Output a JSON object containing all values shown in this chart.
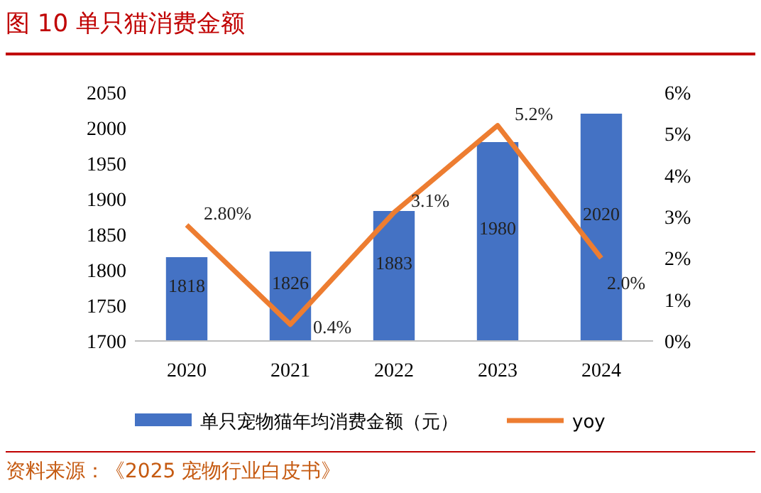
{
  "chart_data": {
    "type": "bar",
    "title": "图 10 单只猫消费金额",
    "categories": [
      "2020",
      "2021",
      "2022",
      "2023",
      "2024"
    ],
    "series": [
      {
        "name": "单只宠物猫年均消费金额（元）",
        "color": "#4472c4",
        "values": [
          1818,
          1826,
          1883,
          1980,
          2020
        ],
        "value_labels": [
          "1818",
          "1826",
          "1883",
          "1980",
          "2020"
        ]
      },
      {
        "name": "yoy",
        "type": "line",
        "axis": "y2",
        "color": "#ed7d31",
        "values": [
          2.8,
          0.4,
          3.1,
          5.2,
          2.0
        ],
        "value_labels": [
          "2.80%",
          "0.4%",
          "3.1%",
          "5.2%",
          "2.0%"
        ]
      }
    ],
    "ylim": [
      1700,
      2050
    ],
    "yticks": [
      1700,
      1750,
      1800,
      1850,
      1900,
      1950,
      2000,
      2050
    ],
    "y2lim": [
      0,
      6
    ],
    "y2ticks": [
      {
        "value": 0,
        "label": "0%"
      },
      {
        "value": 1,
        "label": "1%"
      },
      {
        "value": 2,
        "label": "2%"
      },
      {
        "value": 3,
        "label": "3%"
      },
      {
        "value": 4,
        "label": "4%"
      },
      {
        "value": 5,
        "label": "5%"
      },
      {
        "value": 6,
        "label": "6%"
      }
    ],
    "grid": false,
    "legend": "bottom",
    "marker": "none",
    "line_style": "solid",
    "annotations": [
      "资料来源：《2025 宠物行业白皮书》"
    ]
  }
}
